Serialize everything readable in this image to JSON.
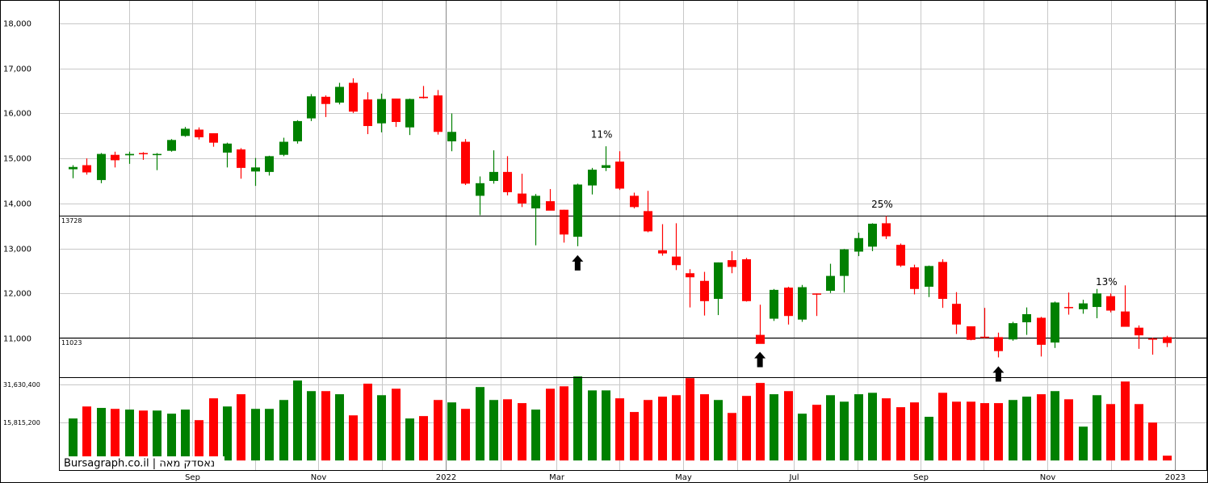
{
  "chart_data": {
    "type": "candlestick",
    "watermark": "Bursagraph.co.il | נאסדק מאה",
    "up_color": "#008000",
    "down_color": "#ff0000",
    "open": [
      14760,
      14850,
      14520,
      15080,
      15070,
      15120,
      15080,
      15170,
      15500,
      15640,
      15560,
      15130,
      15200,
      14710,
      14700,
      15080,
      15380,
      15890,
      16370,
      16240,
      16680,
      16310,
      15780,
      16330,
      15690,
      16370,
      16400,
      15380,
      15370,
      14170,
      14500,
      14700,
      14220,
      13890,
      14050,
      13860,
      13260,
      14400,
      14790,
      14930,
      14170,
      13830,
      12960,
      12820,
      12450,
      12280,
      11880,
      12740,
      12760,
      11080,
      11440,
      12130,
      11420,
      12000,
      12060,
      12390,
      12930,
      13040,
      13560,
      13080,
      12580,
      12150,
      12700,
      11770,
      11270,
      11040,
      11030,
      10980,
      11360,
      11460,
      10910,
      11700,
      11650,
      11700,
      11940,
      11600,
      11240,
      11000,
      11030
    ],
    "high": [
      14850,
      15000,
      15120,
      15150,
      15150,
      15140,
      15120,
      15430,
      15700,
      15690,
      15560,
      15350,
      15230,
      15010,
      15060,
      15460,
      15850,
      16430,
      16400,
      16680,
      16780,
      16470,
      16440,
      16330,
      16330,
      16610,
      16520,
      16000,
      15430,
      14600,
      15180,
      15050,
      14660,
      14210,
      14320,
      13860,
      14440,
      14790,
      15270,
      15160,
      14240,
      14280,
      13540,
      13560,
      12540,
      12480,
      12690,
      12940,
      12790,
      11750,
      12100,
      12150,
      12190,
      12000,
      12660,
      12990,
      13350,
      13560,
      13720,
      13110,
      12640,
      12620,
      12760,
      12030,
      11270,
      11680,
      11130,
      11370,
      11690,
      11480,
      11820,
      12020,
      11860,
      12100,
      12000,
      12180,
      11290,
      11020,
      11060
    ],
    "low": [
      14560,
      14640,
      14450,
      14800,
      14880,
      14970,
      14740,
      15150,
      15480,
      15420,
      15260,
      14800,
      14550,
      14390,
      14620,
      15050,
      15330,
      15830,
      15920,
      16200,
      16010,
      15540,
      15580,
      15700,
      15520,
      16330,
      15530,
      15160,
      14410,
      13740,
      14440,
      14180,
      13920,
      13070,
      13850,
      13130,
      13050,
      14200,
      14720,
      14300,
      13890,
      13360,
      12840,
      12520,
      11690,
      11510,
      11520,
      12450,
      11820,
      10900,
      11390,
      11310,
      11370,
      11500,
      12010,
      12020,
      12830,
      12940,
      13210,
      12590,
      11980,
      11920,
      11680,
      11100,
      10960,
      11000,
      10580,
      10950,
      11080,
      10600,
      10790,
      11530,
      11550,
      11450,
      11580,
      11270,
      10770,
      10640,
      10810
    ],
    "close": [
      14810,
      14690,
      15100,
      14960,
      15100,
      15110,
      15100,
      15410,
      15660,
      15470,
      15350,
      15330,
      14790,
      14800,
      15050,
      15370,
      15830,
      16380,
      16210,
      16590,
      16040,
      15720,
      16320,
      15810,
      16320,
      16340,
      15590,
      15590,
      14440,
      14450,
      14700,
      14250,
      14000,
      14170,
      13840,
      13310,
      14420,
      14750,
      14850,
      14330,
      13920,
      13380,
      12890,
      12630,
      12360,
      11830,
      12690,
      12590,
      11830,
      10880,
      12080,
      11500,
      12140,
      11990,
      12390,
      12980,
      13230,
      13550,
      13270,
      12620,
      12100,
      12610,
      11880,
      11310,
      10970,
      11020,
      10720,
      11340,
      11540,
      10860,
      11800,
      11680,
      11780,
      12000,
      11620,
      11260,
      11070,
      10990,
      10900
    ],
    "volume": [
      17500000,
      22500000,
      21900000,
      21500000,
      21200000,
      20800000,
      20800000,
      19500000,
      21200000,
      16800000,
      25900000,
      22500000,
      27600000,
      21500000,
      21500000,
      25200000,
      33300000,
      28900000,
      28900000,
      27600000,
      18800000,
      32000000,
      27200000,
      29900000,
      17500000,
      18500000,
      25200000,
      24200000,
      21500000,
      30600000,
      25200000,
      25500000,
      23900000,
      21200000,
      29900000,
      30900000,
      35000000,
      29200000,
      29200000,
      25900000,
      20200000,
      25200000,
      26600000,
      27200000,
      34300000,
      27600000,
      25200000,
      19800000,
      26900000,
      32300000,
      27600000,
      28900000,
      19500000,
      23200000,
      27200000,
      24500000,
      27600000,
      28200000,
      25900000,
      22200000,
      24200000,
      18200000,
      28200000,
      24500000,
      24500000,
      23900000,
      23900000,
      25200000,
      26600000,
      27600000,
      28900000,
      25500000,
      14100000,
      27200000,
      23500000,
      32900000,
      23500000,
      15800000,
      2000000
    ],
    "xlim": [
      -0.98,
      80.83
    ],
    "xticks": [
      {
        "value": 8.52,
        "label": "Sep"
      },
      {
        "value": 17.5,
        "label": "Nov"
      },
      {
        "value": 26.6,
        "label": "2022"
      },
      {
        "value": 34.49,
        "label": "Mar"
      },
      {
        "value": 43.52,
        "label": "May"
      },
      {
        "value": 51.41,
        "label": "Jul"
      },
      {
        "value": 60.45,
        "label": "Sep"
      },
      {
        "value": 69.49,
        "label": "Nov"
      },
      {
        "value": 78.58,
        "label": "2023"
      }
    ],
    "xgrid_minor": [
      4.03,
      13.01,
      22.05,
      30.51,
      38.98,
      47.38,
      55.96,
      64.94,
      74.03
    ],
    "ylim": [
      10140,
      18520
    ],
    "yticks": [
      {
        "value": 11000,
        "label": "11,000"
      },
      {
        "value": 12000,
        "label": "12,000"
      },
      {
        "value": 13000,
        "label": "13,000"
      },
      {
        "value": 14000,
        "label": "14,000"
      },
      {
        "value": 15000,
        "label": "15,000"
      },
      {
        "value": 16000,
        "label": "16,000"
      },
      {
        "value": 17000,
        "label": "17,000"
      },
      {
        "value": 18000,
        "label": "18,000"
      }
    ],
    "grid": true,
    "hlines": [
      13728,
      11023
    ],
    "y2lim": [
      -4000000,
      34700000
    ],
    "y2ticks": [
      {
        "value": 15815200,
        "label": "15,815,200"
      },
      {
        "value": 31630400,
        "label": "31,630,400"
      }
    ],
    "annotations": [
      {
        "text": "11%",
        "index": 38
      },
      {
        "text": "25%",
        "index": 58
      },
      {
        "text": "13%",
        "index": 74
      }
    ],
    "arrows": [
      36,
      49,
      66
    ]
  }
}
